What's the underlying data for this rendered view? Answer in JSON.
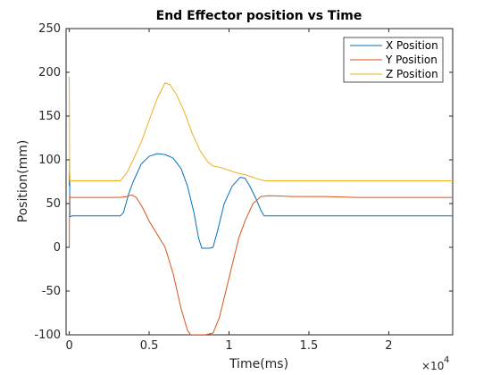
{
  "chart_data": {
    "type": "line",
    "title": "End Effector position vs Time",
    "xlabel": "Time(ms)",
    "ylabel": "Position(mm)",
    "x_exponent_label": "×10",
    "x_exponent_power": "4",
    "xlim": [
      -200,
      24000
    ],
    "ylim": [
      -100,
      250
    ],
    "x_ticks": [
      0,
      5000,
      10000,
      15000,
      20000
    ],
    "x_tick_labels": [
      "0",
      "0.5",
      "1",
      "1.5",
      "2"
    ],
    "y_ticks": [
      -100,
      -50,
      0,
      50,
      100,
      150,
      200,
      250
    ],
    "y_tick_labels": [
      "-100",
      "-50",
      "0",
      "50",
      "100",
      "150",
      "200",
      "250"
    ],
    "grid": false,
    "legend_position": "top-right",
    "series": [
      {
        "name": "X Position",
        "color": "#0072BD",
        "points": [
          [
            0,
            70
          ],
          [
            20,
            100
          ],
          [
            40,
            35
          ],
          [
            200,
            36
          ],
          [
            3200,
            36
          ],
          [
            3400,
            40
          ],
          [
            3700,
            60
          ],
          [
            4000,
            75
          ],
          [
            4500,
            95
          ],
          [
            5000,
            104
          ],
          [
            5500,
            107
          ],
          [
            6000,
            106
          ],
          [
            6500,
            102
          ],
          [
            7000,
            90
          ],
          [
            7400,
            70
          ],
          [
            7800,
            40
          ],
          [
            8100,
            10
          ],
          [
            8300,
            -1
          ],
          [
            8500,
            -1
          ],
          [
            8800,
            -1
          ],
          [
            9000,
            0
          ],
          [
            9300,
            20
          ],
          [
            9700,
            50
          ],
          [
            10200,
            70
          ],
          [
            10700,
            80
          ],
          [
            11000,
            79
          ],
          [
            11300,
            70
          ],
          [
            11700,
            55
          ],
          [
            12000,
            42
          ],
          [
            12200,
            36
          ],
          [
            14000,
            36
          ],
          [
            18000,
            36
          ],
          [
            24000,
            36
          ]
        ]
      },
      {
        "name": "Y Position",
        "color": "#D95319",
        "points": [
          [
            0,
            0
          ],
          [
            20,
            60
          ],
          [
            40,
            57
          ],
          [
            200,
            57
          ],
          [
            3200,
            57
          ],
          [
            3600,
            58
          ],
          [
            3900,
            60
          ],
          [
            4200,
            57
          ],
          [
            4600,
            45
          ],
          [
            5000,
            30
          ],
          [
            5500,
            15
          ],
          [
            6000,
            0
          ],
          [
            6500,
            -30
          ],
          [
            7000,
            -70
          ],
          [
            7400,
            -95
          ],
          [
            7600,
            -100
          ],
          [
            8500,
            -100
          ],
          [
            9000,
            -98
          ],
          [
            9400,
            -80
          ],
          [
            9800,
            -50
          ],
          [
            10200,
            -20
          ],
          [
            10600,
            10
          ],
          [
            11000,
            30
          ],
          [
            11500,
            50
          ],
          [
            12000,
            58
          ],
          [
            12500,
            59
          ],
          [
            14000,
            58
          ],
          [
            16000,
            58
          ],
          [
            18000,
            57
          ],
          [
            24000,
            57
          ]
        ]
      },
      {
        "name": "Z Position",
        "color": "#EDB120",
        "points": [
          [
            0,
            195
          ],
          [
            20,
            90
          ],
          [
            40,
            76
          ],
          [
            200,
            76
          ],
          [
            3200,
            76
          ],
          [
            3600,
            85
          ],
          [
            4000,
            100
          ],
          [
            4500,
            120
          ],
          [
            5000,
            145
          ],
          [
            5500,
            170
          ],
          [
            6000,
            188
          ],
          [
            6300,
            186
          ],
          [
            6700,
            175
          ],
          [
            7200,
            155
          ],
          [
            7700,
            130
          ],
          [
            8200,
            110
          ],
          [
            8700,
            97
          ],
          [
            9000,
            93
          ],
          [
            9500,
            91
          ],
          [
            10000,
            88
          ],
          [
            10500,
            85
          ],
          [
            11000,
            83
          ],
          [
            11500,
            80
          ],
          [
            12000,
            77
          ],
          [
            12300,
            76
          ],
          [
            14000,
            76
          ],
          [
            18000,
            76
          ],
          [
            24000,
            76
          ]
        ]
      }
    ]
  }
}
